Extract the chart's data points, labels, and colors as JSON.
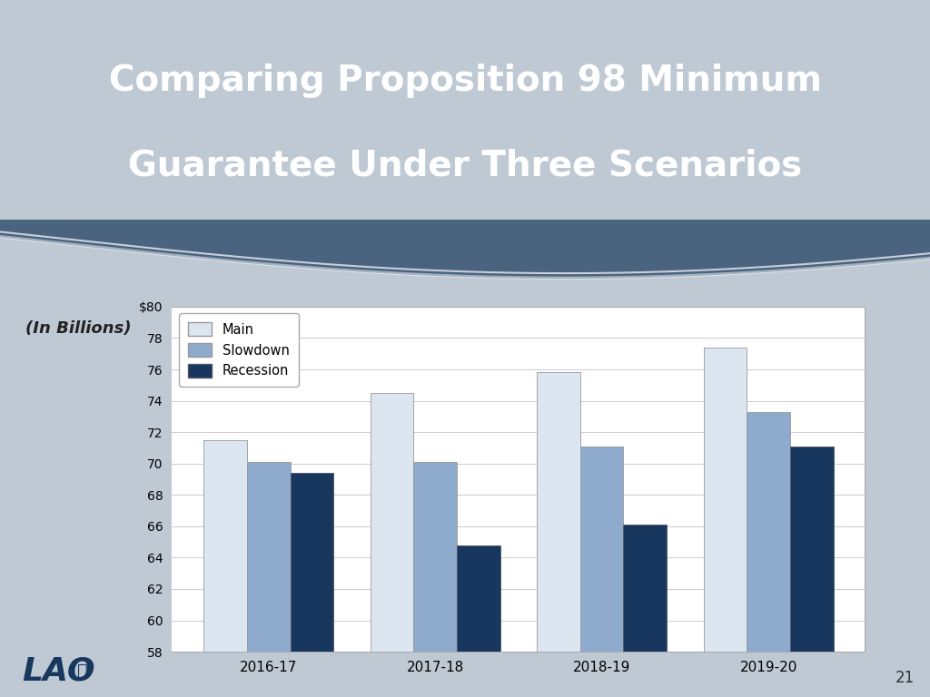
{
  "title_line1": "Comparing Proposition 98 Minimum",
  "title_line2": "Guarantee Under Three Scenarios",
  "subtitle": "(In Billions)",
  "categories": [
    "2016-17",
    "2017-18",
    "2018-19",
    "2019-20"
  ],
  "main_values": [
    71.5,
    74.5,
    75.8,
    77.4
  ],
  "slowdown_values": [
    70.1,
    70.1,
    71.1,
    73.3
  ],
  "recession_values": [
    69.4,
    64.8,
    66.1,
    71.1
  ],
  "color_main": "#dce6f1",
  "color_slowdown": "#8eaacc",
  "color_recession": "#17375e",
  "ylim_min": 58,
  "ylim_max": 80,
  "yticks": [
    58,
    60,
    62,
    64,
    66,
    68,
    70,
    72,
    74,
    76,
    78,
    80
  ],
  "ytick_labels": [
    "58",
    "60",
    "62",
    "64",
    "66",
    "68",
    "70",
    "72",
    "74",
    "76",
    "78",
    "$80"
  ],
  "header_bg_color": "#4a6480",
  "body_bg_color": "#bfc9d4",
  "chart_bg_color": "#ffffff",
  "page_number": "21",
  "legend_labels": [
    "Main",
    "Slowdown",
    "Recession"
  ],
  "lao_color": "#17375e"
}
